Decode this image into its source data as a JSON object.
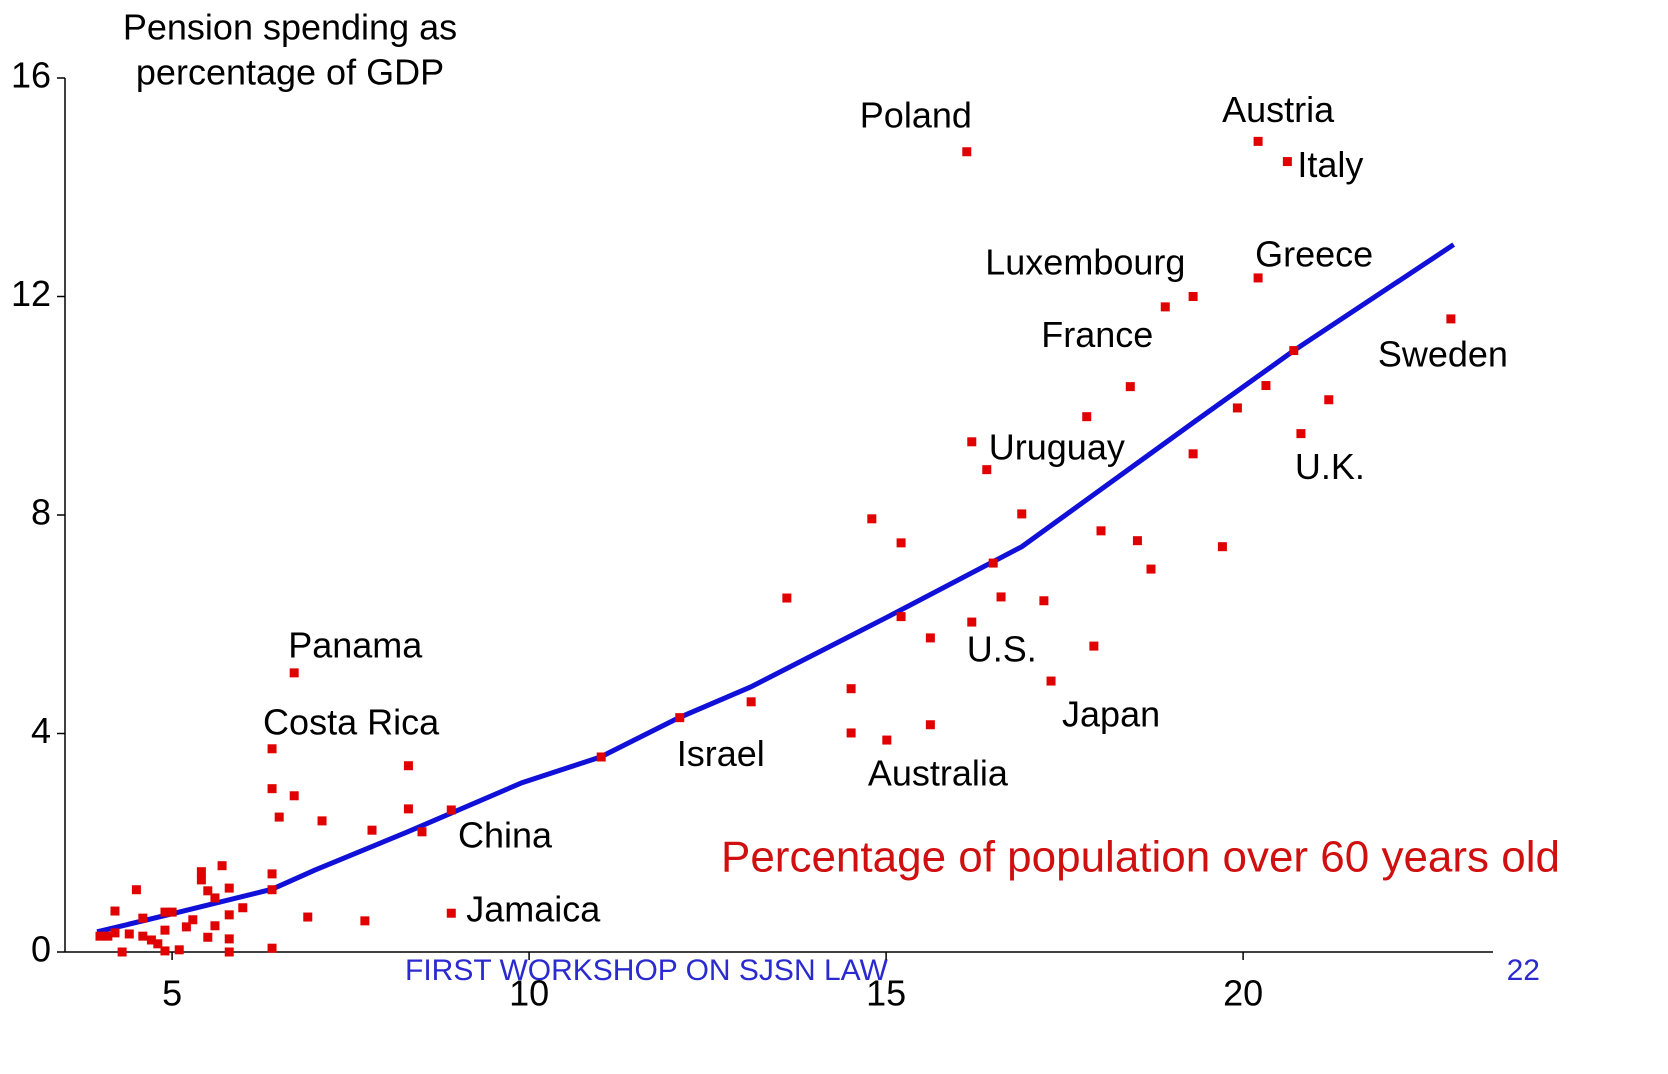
{
  "chart_data": {
    "type": "scatter",
    "ylabel": [
      "Pension spending as",
      "percentage of GDP"
    ],
    "xlabel": "Percentage of population over 60 years old",
    "xlim": [
      3.5,
      23.5
    ],
    "ylim": [
      0,
      16
    ],
    "xticks": [
      5,
      10,
      15,
      20
    ],
    "yticks": [
      0,
      4,
      8,
      12,
      16
    ],
    "color": "#e00000",
    "x": [
      16.13,
      20.21,
      20.62,
      20.21,
      18.91,
      22.91,
      18.42,
      16.2,
      20.81,
      16.2,
      17.31,
      15.01,
      12.11,
      6.71,
      6.4,
      8.5,
      8.91,
      19.3,
      20.71,
      20.32,
      17.81,
      19.92,
      21.2,
      16.41,
      19.3,
      16.9,
      14.8,
      15.21,
      18.01,
      18.52,
      19.71,
      18.71,
      16.5,
      13.61,
      16.61,
      17.21,
      15.21,
      15.62,
      17.91,
      14.51,
      13.11,
      15.62,
      14.51,
      11.01,
      8.31,
      6.4,
      6.71,
      6.5,
      8.31,
      8.91,
      7.1,
      7.8,
      5.7,
      5.41,
      5.41,
      5.8,
      6.4,
      6.4,
      5.5,
      4.5,
      5.99,
      5.6,
      5.8,
      4.59,
      4.9,
      5.0,
      5.29,
      6.9,
      7.7,
      4.2,
      5.2,
      5.6,
      5.5,
      5.8,
      4.9,
      4.4,
      4.59,
      4.71,
      4.8,
      3.99,
      4.1,
      4.2,
      4.3,
      4.9,
      5.1,
      5.8,
      6.4
    ],
    "values": [
      14.65,
      14.84,
      14.47,
      12.34,
      11.81,
      11.59,
      10.35,
      9.34,
      9.49,
      6.04,
      4.96,
      3.88,
      4.29,
      5.11,
      3.72,
      2.2,
      0.71,
      12.0,
      11.01,
      10.37,
      9.8,
      9.96,
      10.11,
      8.83,
      9.12,
      8.02,
      7.93,
      7.49,
      7.71,
      7.53,
      7.42,
      7.01,
      7.12,
      6.48,
      6.5,
      6.43,
      6.14,
      5.75,
      5.6,
      4.82,
      4.58,
      4.16,
      4.01,
      3.57,
      3.41,
      2.99,
      2.86,
      2.47,
      2.62,
      2.6,
      2.4,
      2.23,
      1.58,
      1.47,
      1.32,
      1.17,
      1.43,
      1.14,
      1.12,
      1.14,
      0.81,
      0.99,
      0.68,
      0.62,
      0.73,
      0.73,
      0.59,
      0.64,
      0.57,
      0.75,
      0.46,
      0.48,
      0.27,
      0.24,
      0.4,
      0.33,
      0.29,
      0.22,
      0.15,
      0.29,
      0.29,
      0.35,
      0.0,
      0.02,
      0.04,
      0.0,
      0.07
    ],
    "labels": [
      "Poland",
      "Austria",
      "Italy",
      "Greece",
      "Luxembourg",
      "Sweden",
      "France",
      "Uruguay",
      "U.K.",
      "U.S.",
      "Japan",
      "Australia",
      "Israel",
      "Panama",
      "Costa Rica",
      "China",
      "Jamaica",
      null,
      null,
      null,
      null,
      null,
      null,
      null,
      null,
      null,
      null,
      null,
      null,
      null,
      null,
      null,
      null,
      null,
      null,
      null,
      null,
      null,
      null,
      null,
      null,
      null,
      null,
      null,
      null,
      null,
      null,
      null,
      null,
      null,
      null,
      null,
      null,
      null,
      null,
      null,
      null,
      null,
      null,
      null,
      null,
      null,
      null,
      null,
      null,
      null,
      null,
      null,
      null,
      null,
      null,
      null,
      null,
      null,
      null,
      null,
      null,
      null,
      null,
      null,
      null,
      null,
      null,
      null,
      null,
      null,
      null
    ],
    "trend": {
      "color": "#1010d8",
      "x": [
        3.95,
        5.0,
        6.4,
        7.0,
        8.3,
        9.9,
        11.0,
        12.1,
        13.1,
        15.0,
        16.9,
        18.0,
        19.3,
        20.7,
        22.95
      ],
      "values": [
        0.37,
        0.7,
        1.15,
        1.5,
        2.2,
        3.1,
        3.57,
        4.29,
        4.85,
        6.12,
        7.42,
        8.46,
        9.69,
        11.0,
        12.95
      ]
    }
  },
  "footer": {
    "text": "FIRST WORKSHOP ON SJSN LAW",
    "page": "22"
  }
}
